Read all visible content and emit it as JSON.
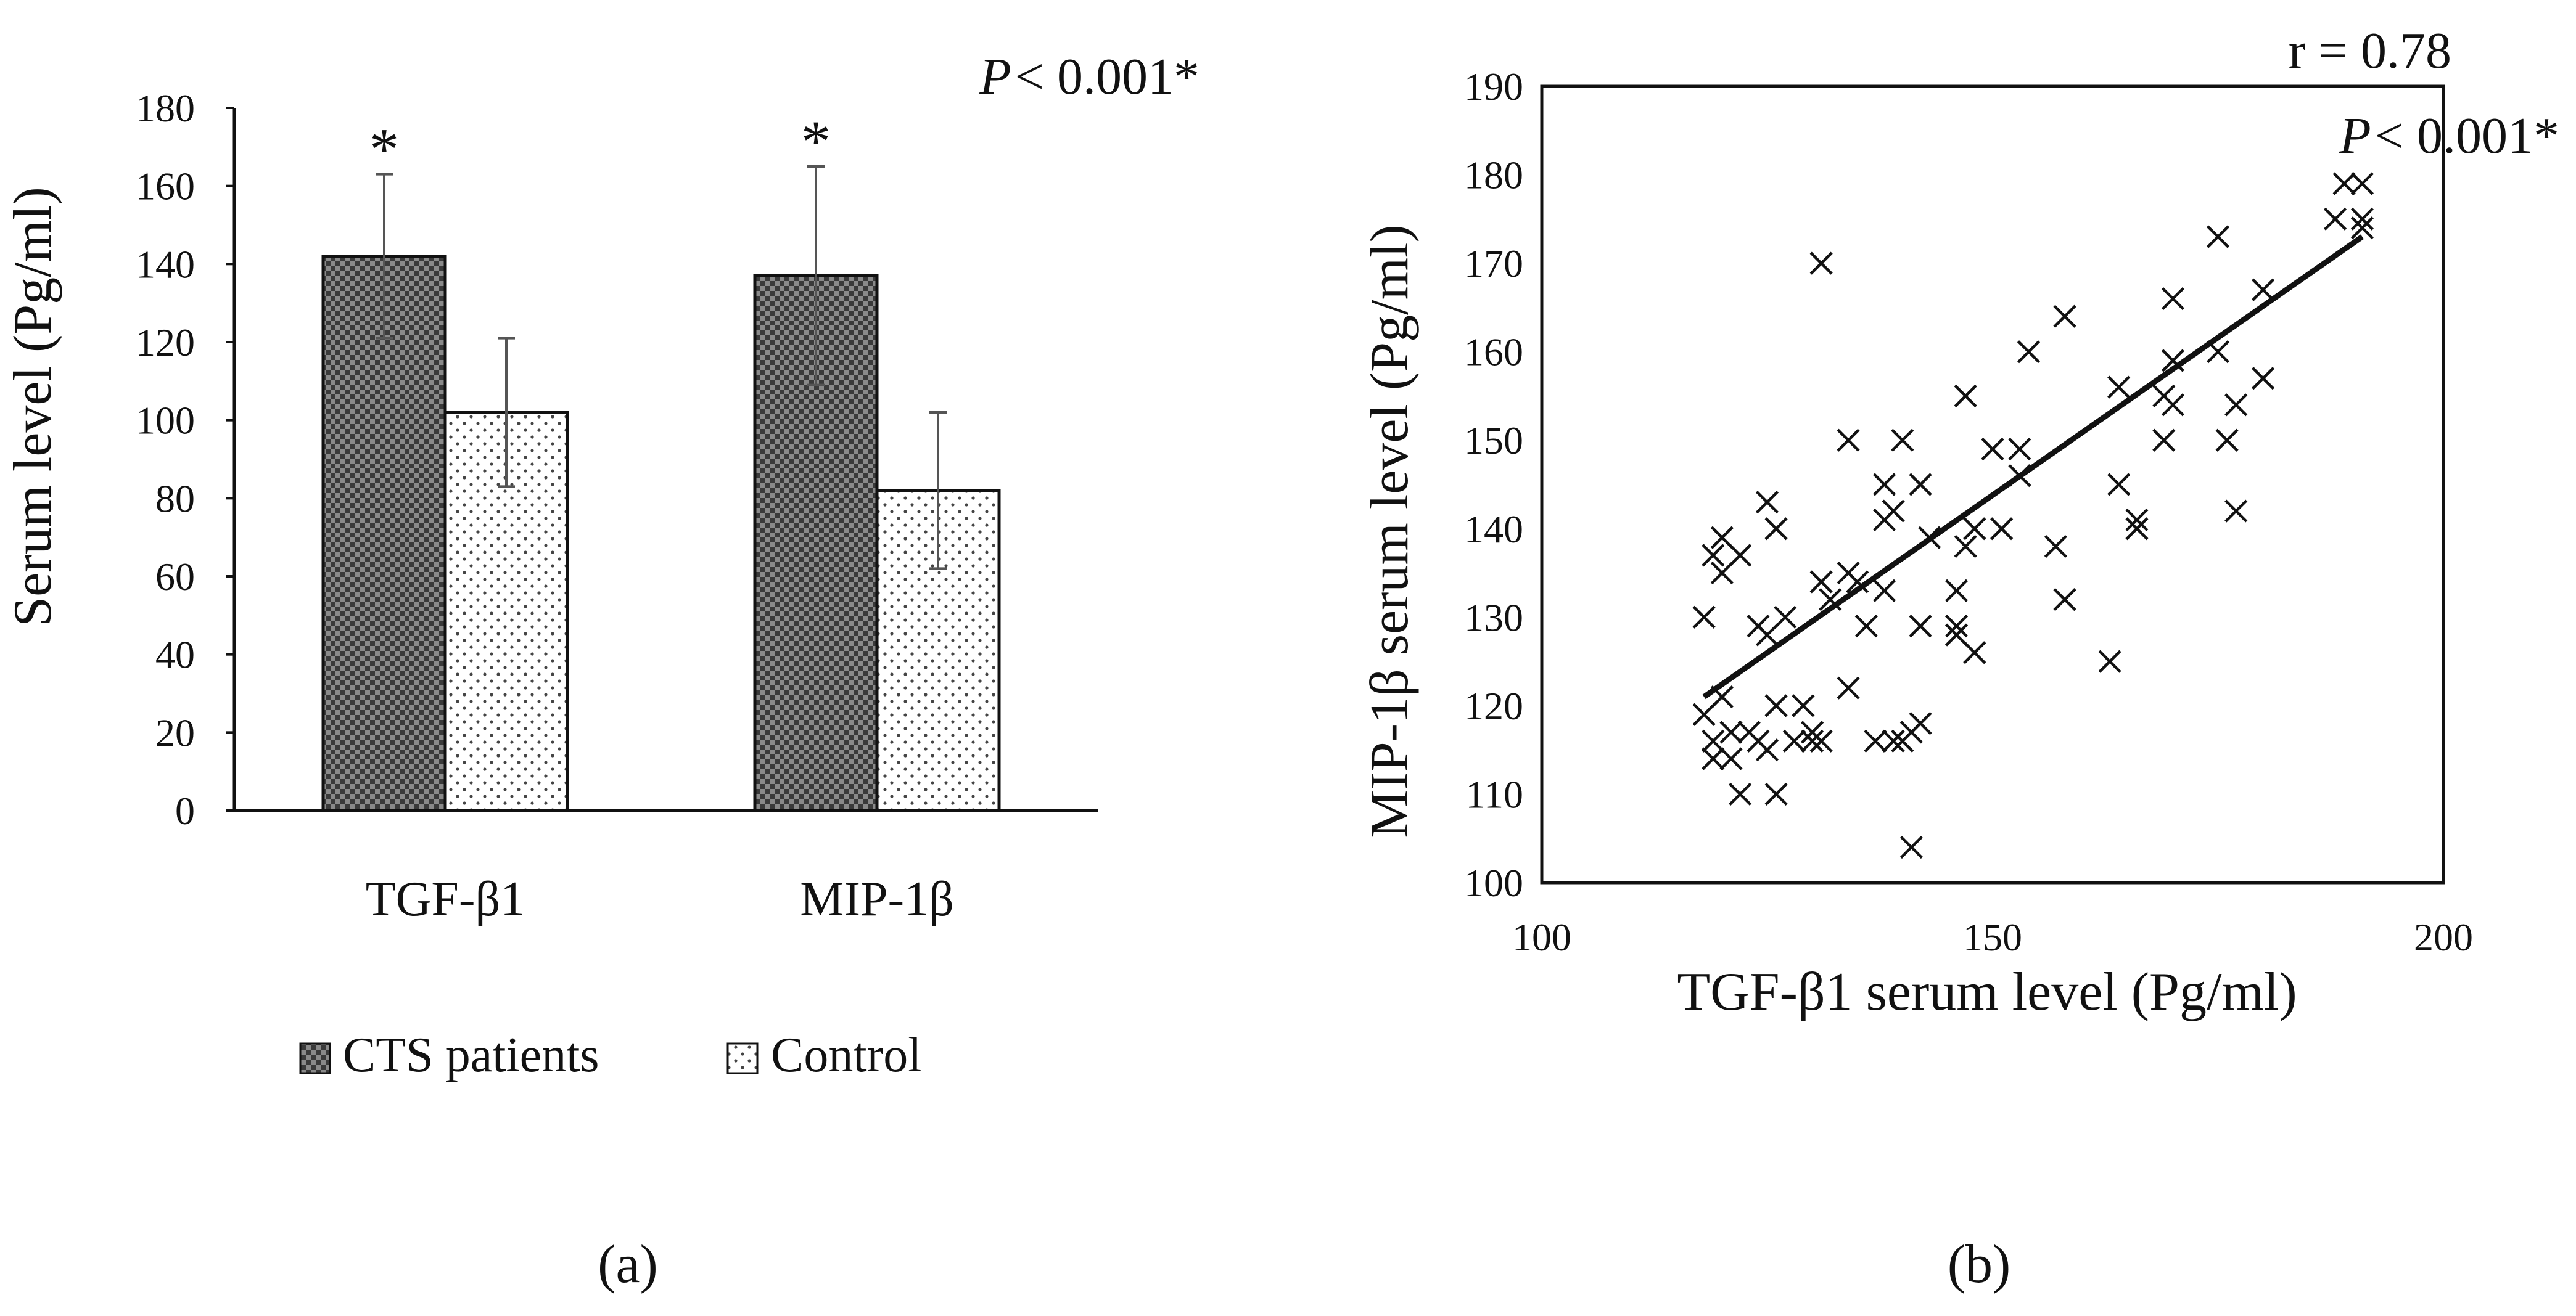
{
  "colors": {
    "cts": "#4a4a4a",
    "control": "#ffffff",
    "axis": "#111111",
    "err": "#555555"
  },
  "chart_data": [
    {
      "type": "bar",
      "panel_label": "(a)",
      "categories": [
        "TGF-β1",
        "MIP-1β"
      ],
      "series": [
        {
          "name": "CTS patients",
          "values": [
            142,
            137
          ],
          "errors": [
            21,
            28
          ],
          "pattern": "dark-checker"
        },
        {
          "name": "Control",
          "values": [
            102,
            82
          ],
          "errors": [
            19,
            20
          ],
          "pattern": "light-dots"
        }
      ],
      "significance_marks": [
        "*",
        "*"
      ],
      "annotation": {
        "italic": "P",
        "text": "< 0.001*"
      },
      "ylabel": "Serum level (Pg/ml)",
      "ylim": [
        0,
        180
      ],
      "yticks": [
        "0",
        "20",
        "40",
        "60",
        "80",
        "100",
        "120",
        "140",
        "160",
        "180"
      ],
      "legend_position": "bottom",
      "legend": [
        "CTS patients",
        "Control"
      ]
    },
    {
      "type": "scatter",
      "panel_label": "(b)",
      "xlabel": "TGF-β1 serum level (Pg/ml)",
      "ylabel": "MIP-1β serum level (Pg/ml)",
      "xlim": [
        100,
        200
      ],
      "ylim": [
        100,
        190
      ],
      "xticks": [
        "100",
        "150",
        "200"
      ],
      "yticks": [
        "100",
        "110",
        "120",
        "130",
        "140",
        "150",
        "160",
        "170",
        "180",
        "190"
      ],
      "annotation": {
        "r_text": "r = 0.78",
        "italic": "P",
        "text": "< 0.001*"
      },
      "marker": "x",
      "trendline": {
        "x1": 118,
        "y1": 121,
        "x2": 191,
        "y2": 173
      },
      "points": [
        [
          118,
          130
        ],
        [
          118,
          119
        ],
        [
          119,
          116
        ],
        [
          119,
          114
        ],
        [
          119,
          137
        ],
        [
          120,
          121
        ],
        [
          120,
          139
        ],
        [
          120,
          135
        ],
        [
          121,
          114
        ],
        [
          121,
          117
        ],
        [
          122,
          110
        ],
        [
          122,
          137
        ],
        [
          123,
          117
        ],
        [
          124,
          129
        ],
        [
          124,
          116
        ],
        [
          125,
          115
        ],
        [
          125,
          143
        ],
        [
          125,
          128
        ],
        [
          126,
          110
        ],
        [
          126,
          120
        ],
        [
          126,
          140
        ],
        [
          127,
          130
        ],
        [
          128,
          116
        ],
        [
          129,
          120
        ],
        [
          130,
          116
        ],
        [
          130,
          117
        ],
        [
          131,
          134
        ],
        [
          131,
          170
        ],
        [
          131,
          116
        ],
        [
          132,
          132
        ],
        [
          134,
          122
        ],
        [
          134,
          135
        ],
        [
          134,
          150
        ],
        [
          135,
          134
        ],
        [
          136,
          129
        ],
        [
          137,
          116
        ],
        [
          138,
          141
        ],
        [
          138,
          145
        ],
        [
          138,
          133
        ],
        [
          139,
          116
        ],
        [
          139,
          142
        ],
        [
          140,
          116
        ],
        [
          140,
          150
        ],
        [
          141,
          104
        ],
        [
          141,
          117
        ],
        [
          142,
          145
        ],
        [
          142,
          129
        ],
        [
          142,
          118
        ],
        [
          143,
          139
        ],
        [
          146,
          128
        ],
        [
          146,
          129
        ],
        [
          146,
          133
        ],
        [
          147,
          155
        ],
        [
          147,
          138
        ],
        [
          148,
          126
        ],
        [
          148,
          140
        ],
        [
          150,
          149
        ],
        [
          151,
          140
        ],
        [
          153,
          146
        ],
        [
          153,
          149
        ],
        [
          154,
          160
        ],
        [
          157,
          138
        ],
        [
          158,
          132
        ],
        [
          158,
          164
        ],
        [
          163,
          125
        ],
        [
          164,
          145
        ],
        [
          164,
          156
        ],
        [
          166,
          140
        ],
        [
          166,
          141
        ],
        [
          169,
          150
        ],
        [
          169,
          155
        ],
        [
          170,
          154
        ],
        [
          170,
          166
        ],
        [
          170,
          159
        ],
        [
          175,
          173
        ],
        [
          175,
          160
        ],
        [
          176,
          150
        ],
        [
          177,
          142
        ],
        [
          177,
          154
        ],
        [
          180,
          157
        ],
        [
          180,
          167
        ],
        [
          188,
          175
        ],
        [
          189,
          179
        ],
        [
          191,
          179
        ],
        [
          191,
          175
        ],
        [
          191,
          174
        ]
      ]
    }
  ]
}
